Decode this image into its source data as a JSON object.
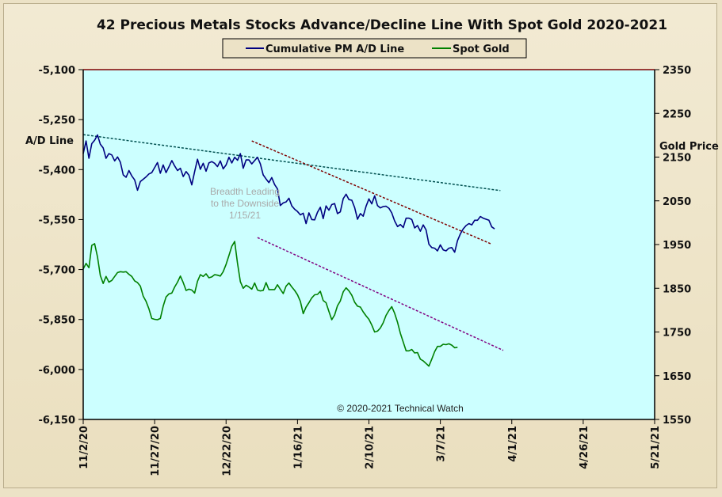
{
  "chart_data": {
    "type": "line",
    "title": "42 Precious Metals Stocks Advance/Decline Line With Spot Gold 2020-2021",
    "legend": {
      "placement": "top-center"
    },
    "left_axis": {
      "label": "A/D Line",
      "ylim": [
        -6150,
        -5100
      ],
      "ticks": [
        "-5,100",
        "-5,250",
        "-5,400",
        "-5,550",
        "-5,700",
        "-5,850",
        "-6,000",
        "-6,150"
      ],
      "tick_values": [
        -5100,
        -5250,
        -5400,
        -5550,
        -5700,
        -5850,
        -6000,
        -6150
      ]
    },
    "right_axis": {
      "label": "Gold Price",
      "ylim": [
        1550,
        2350
      ],
      "ticks": [
        "2350",
        "2250",
        "2150",
        "2050",
        "1950",
        "1850",
        "1750",
        "1650",
        "1550"
      ],
      "tick_values": [
        2350,
        2250,
        2150,
        2050,
        1950,
        1850,
        1750,
        1650,
        1550
      ]
    },
    "x_axis": {
      "ticks": [
        "11/2/20",
        "11/27/20",
        "12/22/20",
        "1/16/21",
        "2/10/21",
        "3/7/21",
        "4/1/21",
        "4/26/21",
        "5/21/21"
      ],
      "tick_days": [
        0,
        25,
        50,
        75,
        100,
        125,
        150,
        175,
        200
      ]
    },
    "grid": false,
    "background": "#ccffff",
    "series": [
      {
        "name": "Cumulative PM A/D Line",
        "axis": "left",
        "color": "#000080",
        "points": [
          [
            0,
            -5352
          ],
          [
            1,
            -5314
          ],
          [
            2,
            -5366
          ],
          [
            3,
            -5322
          ],
          [
            4,
            -5312
          ],
          [
            5,
            -5296
          ],
          [
            6,
            -5324
          ],
          [
            7,
            -5335
          ],
          [
            8,
            -5366
          ],
          [
            9,
            -5352
          ],
          [
            10,
            -5356
          ],
          [
            11,
            -5374
          ],
          [
            12,
            -5362
          ],
          [
            13,
            -5378
          ],
          [
            14,
            -5416
          ],
          [
            15,
            -5423
          ],
          [
            16,
            -5403
          ],
          [
            17,
            -5419
          ],
          [
            18,
            -5431
          ],
          [
            19,
            -5462
          ],
          [
            20,
            -5436
          ],
          [
            21,
            -5429
          ],
          [
            22,
            -5422
          ],
          [
            23,
            -5413
          ],
          [
            24,
            -5409
          ],
          [
            26,
            -5379
          ],
          [
            27,
            -5411
          ],
          [
            28,
            -5386
          ],
          [
            29,
            -5409
          ],
          [
            30,
            -5392
          ],
          [
            31,
            -5373
          ],
          [
            32,
            -5389
          ],
          [
            33,
            -5403
          ],
          [
            34,
            -5396
          ],
          [
            35,
            -5421
          ],
          [
            36,
            -5406
          ],
          [
            37,
            -5417
          ],
          [
            38,
            -5446
          ],
          [
            39,
            -5406
          ],
          [
            40,
            -5369
          ],
          [
            41,
            -5399
          ],
          [
            42,
            -5381
          ],
          [
            43,
            -5405
          ],
          [
            44,
            -5380
          ],
          [
            45,
            -5376
          ],
          [
            46,
            -5381
          ],
          [
            47,
            -5391
          ],
          [
            48,
            -5374
          ],
          [
            49,
            -5398
          ],
          [
            50,
            -5386
          ],
          [
            51,
            -5363
          ],
          [
            52,
            -5380
          ],
          [
            53,
            -5363
          ],
          [
            54,
            -5372
          ],
          [
            55,
            -5352
          ],
          [
            56,
            -5396
          ],
          [
            57,
            -5371
          ],
          [
            58,
            -5371
          ],
          [
            59,
            -5383
          ],
          [
            61,
            -5363
          ],
          [
            62,
            -5383
          ],
          [
            63,
            -5416
          ],
          [
            64,
            -5428
          ],
          [
            65,
            -5439
          ],
          [
            66,
            -5424
          ],
          [
            67,
            -5445
          ],
          [
            68,
            -5458
          ],
          [
            69,
            -5508
          ],
          [
            70,
            -5500
          ],
          [
            71,
            -5497
          ],
          [
            72,
            -5486
          ],
          [
            73,
            -5509
          ],
          [
            74,
            -5519
          ],
          [
            75,
            -5526
          ],
          [
            76,
            -5536
          ],
          [
            77,
            -5531
          ],
          [
            78,
            -5562
          ],
          [
            79,
            -5530
          ],
          [
            80,
            -5550
          ],
          [
            81,
            -5551
          ],
          [
            82,
            -5528
          ],
          [
            83,
            -5513
          ],
          [
            84,
            -5547
          ],
          [
            85,
            -5509
          ],
          [
            86,
            -5522
          ],
          [
            87,
            -5505
          ],
          [
            88,
            -5502
          ],
          [
            89,
            -5532
          ],
          [
            90,
            -5527
          ],
          [
            91,
            -5487
          ],
          [
            92,
            -5474
          ],
          [
            93,
            -5490
          ],
          [
            94,
            -5492
          ],
          [
            95,
            -5514
          ],
          [
            96,
            -5549
          ],
          [
            97,
            -5532
          ],
          [
            98,
            -5540
          ],
          [
            99,
            -5510
          ],
          [
            100,
            -5488
          ],
          [
            101,
            -5503
          ],
          [
            102,
            -5479
          ],
          [
            103,
            -5508
          ],
          [
            104,
            -5515
          ],
          [
            105,
            -5511
          ],
          [
            106,
            -5510
          ],
          [
            107,
            -5516
          ],
          [
            108,
            -5530
          ],
          [
            109,
            -5554
          ],
          [
            110,
            -5571
          ],
          [
            111,
            -5565
          ],
          [
            112,
            -5574
          ],
          [
            113,
            -5546
          ],
          [
            114,
            -5546
          ],
          [
            115,
            -5550
          ],
          [
            116,
            -5575
          ],
          [
            117,
            -5568
          ],
          [
            118,
            -5585
          ],
          [
            119,
            -5566
          ],
          [
            120,
            -5581
          ],
          [
            121,
            -5624
          ],
          [
            122,
            -5634
          ],
          [
            123,
            -5636
          ],
          [
            124,
            -5644
          ],
          [
            125,
            -5626
          ],
          [
            126,
            -5641
          ],
          [
            127,
            -5644
          ],
          [
            128,
            -5636
          ],
          [
            129,
            -5634
          ],
          [
            130,
            -5648
          ],
          [
            131,
            -5613
          ],
          [
            132,
            -5593
          ],
          [
            133,
            -5578
          ],
          [
            134,
            -5568
          ],
          [
            135,
            -5562
          ],
          [
            136,
            -5566
          ],
          [
            137,
            -5552
          ],
          [
            138,
            -5552
          ],
          [
            139,
            -5541
          ],
          [
            140,
            -5546
          ],
          [
            141,
            -5549
          ],
          [
            142,
            -5552
          ],
          [
            143,
            -5572
          ],
          [
            144,
            -5578
          ]
        ]
      },
      {
        "name": "Spot Gold",
        "axis": "right",
        "color": "#008000",
        "points": [
          [
            0,
            1894
          ],
          [
            1,
            1907
          ],
          [
            2,
            1897
          ],
          [
            3,
            1948
          ],
          [
            4,
            1952
          ],
          [
            5,
            1922
          ],
          [
            6,
            1879
          ],
          [
            7,
            1861
          ],
          [
            8,
            1877
          ],
          [
            9,
            1864
          ],
          [
            10,
            1868
          ],
          [
            11,
            1877
          ],
          [
            12,
            1886
          ],
          [
            13,
            1888
          ],
          [
            14,
            1887
          ],
          [
            15,
            1888
          ],
          [
            16,
            1882
          ],
          [
            17,
            1877
          ],
          [
            18,
            1867
          ],
          [
            19,
            1863
          ],
          [
            20,
            1855
          ],
          [
            21,
            1832
          ],
          [
            22,
            1820
          ],
          [
            23,
            1803
          ],
          [
            24,
            1781
          ],
          [
            25,
            1779
          ],
          [
            26,
            1778
          ],
          [
            27,
            1781
          ],
          [
            28,
            1809
          ],
          [
            29,
            1830
          ],
          [
            30,
            1837
          ],
          [
            31,
            1839
          ],
          [
            32,
            1853
          ],
          [
            33,
            1864
          ],
          [
            34,
            1878
          ],
          [
            35,
            1863
          ],
          [
            36,
            1845
          ],
          [
            37,
            1848
          ],
          [
            38,
            1846
          ],
          [
            39,
            1839
          ],
          [
            40,
            1866
          ],
          [
            41,
            1881
          ],
          [
            42,
            1877
          ],
          [
            43,
            1883
          ],
          [
            44,
            1874
          ],
          [
            45,
            1876
          ],
          [
            46,
            1881
          ],
          [
            47,
            1880
          ],
          [
            48,
            1878
          ],
          [
            49,
            1888
          ],
          [
            50,
            1905
          ],
          [
            51,
            1925
          ],
          [
            52,
            1946
          ],
          [
            53,
            1957
          ],
          [
            54,
            1907
          ],
          [
            55,
            1865
          ],
          [
            56,
            1850
          ],
          [
            57,
            1857
          ],
          [
            58,
            1853
          ],
          [
            59,
            1848
          ],
          [
            60,
            1862
          ],
          [
            61,
            1846
          ],
          [
            62,
            1844
          ],
          [
            63,
            1845
          ],
          [
            64,
            1863
          ],
          [
            65,
            1847
          ],
          [
            66,
            1847
          ],
          [
            67,
            1847
          ],
          [
            68,
            1858
          ],
          [
            69,
            1848
          ],
          [
            70,
            1838
          ],
          [
            71,
            1855
          ],
          [
            72,
            1862
          ],
          [
            73,
            1853
          ],
          [
            74,
            1845
          ],
          [
            75,
            1835
          ],
          [
            76,
            1820
          ],
          [
            77,
            1792
          ],
          [
            78,
            1807
          ],
          [
            79,
            1817
          ],
          [
            80,
            1828
          ],
          [
            81,
            1835
          ],
          [
            82,
            1836
          ],
          [
            83,
            1843
          ],
          [
            84,
            1822
          ],
          [
            85,
            1817
          ],
          [
            86,
            1797
          ],
          [
            87,
            1778
          ],
          [
            88,
            1789
          ],
          [
            89,
            1810
          ],
          [
            90,
            1821
          ],
          [
            91,
            1842
          ],
          [
            92,
            1851
          ],
          [
            93,
            1844
          ],
          [
            94,
            1834
          ],
          [
            95,
            1818
          ],
          [
            96,
            1809
          ],
          [
            97,
            1807
          ],
          [
            98,
            1796
          ],
          [
            99,
            1787
          ],
          [
            100,
            1779
          ],
          [
            101,
            1766
          ],
          [
            102,
            1750
          ],
          [
            103,
            1752
          ],
          [
            104,
            1759
          ],
          [
            105,
            1771
          ],
          [
            106,
            1788
          ],
          [
            107,
            1799
          ],
          [
            108,
            1808
          ],
          [
            109,
            1793
          ],
          [
            110,
            1772
          ],
          [
            111,
            1747
          ],
          [
            112,
            1727
          ],
          [
            113,
            1707
          ],
          [
            114,
            1707
          ],
          [
            115,
            1710
          ],
          [
            116,
            1702
          ],
          [
            117,
            1703
          ],
          [
            118,
            1688
          ],
          [
            119,
            1684
          ],
          [
            120,
            1678
          ],
          [
            121,
            1672
          ],
          [
            122,
            1688
          ],
          [
            123,
            1705
          ],
          [
            124,
            1717
          ],
          [
            125,
            1717
          ],
          [
            126,
            1722
          ],
          [
            127,
            1721
          ],
          [
            128,
            1723
          ],
          [
            129,
            1720
          ],
          [
            130,
            1714
          ],
          [
            131,
            1715
          ]
        ]
      }
    ],
    "trendlines": [
      {
        "axis": "left",
        "color": "#005050",
        "from": [
          0,
          -5295
        ],
        "to": [
          146,
          -5463
        ]
      },
      {
        "axis": "left",
        "color": "#800000",
        "from": [
          59,
          -5314
        ],
        "to": [
          143,
          -5624
        ]
      },
      {
        "axis": "right",
        "color": "#800080",
        "from": [
          61,
          1966
        ],
        "to": [
          147,
          1708
        ]
      }
    ],
    "annotations": [
      "Breadth Leading",
      "to the Downside",
      "1/15/21"
    ],
    "copyright": "© 2020-2021 Technical Watch"
  }
}
